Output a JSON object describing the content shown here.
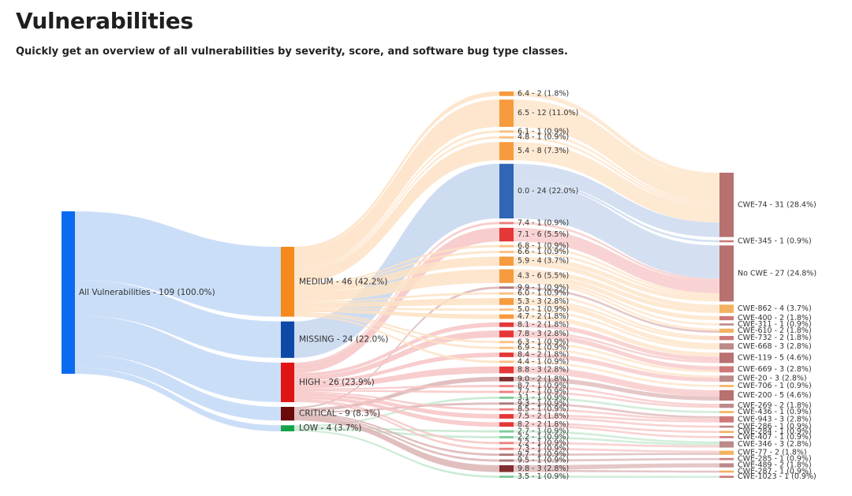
{
  "title": "Vulnerabilities",
  "subtitle": "Quickly get an overview of all vulnerabilities by severity, score, and software bug type classes.",
  "colors": {
    "root": "#0a6bf0",
    "medium": "#f58a1c",
    "missing": "#0d4aa8",
    "high": "#e01414",
    "critical": "#6b0a0a",
    "low": "#15a34a",
    "link_root": "#c8dcf8",
    "link_medium": "#fde2c4",
    "link_missing": "#c6d6ee",
    "link_high": "#f7c4c4",
    "link_critical": "#dcb4b4",
    "link_low": "#c4e8cf",
    "cwe_default": "#b06060"
  },
  "chart_data": {
    "type": "sankey",
    "title": "",
    "total": 109,
    "root": {
      "label": "All Vulnerabilities",
      "count": 109,
      "pct": "100.0%"
    },
    "severities": [
      {
        "key": "medium",
        "label": "MEDIUM",
        "count": 46,
        "pct": "42.2%"
      },
      {
        "key": "missing",
        "label": "MISSING",
        "count": 24,
        "pct": "22.0%"
      },
      {
        "key": "high",
        "label": "HIGH",
        "count": 26,
        "pct": "23.9%"
      },
      {
        "key": "critical",
        "label": "CRITICAL",
        "count": 9,
        "pct": "8.3%"
      },
      {
        "key": "low",
        "label": "LOW",
        "count": 4,
        "pct": "3.7%"
      }
    ],
    "scores": [
      {
        "label": "6.4",
        "count": 2,
        "pct": "1.8%",
        "sev": "medium"
      },
      {
        "label": "6.5",
        "count": 12,
        "pct": "11.0%",
        "sev": "medium"
      },
      {
        "label": "6.1",
        "count": 1,
        "pct": "0.9%",
        "sev": "medium"
      },
      {
        "label": "4.8",
        "count": 1,
        "pct": "0.9%",
        "sev": "medium"
      },
      {
        "label": "5.4",
        "count": 8,
        "pct": "7.3%",
        "sev": "medium"
      },
      {
        "label": "0.0",
        "count": 24,
        "pct": "22.0%",
        "sev": "missing"
      },
      {
        "label": "7.4",
        "count": 1,
        "pct": "0.9%",
        "sev": "high"
      },
      {
        "label": "7.1",
        "count": 6,
        "pct": "5.5%",
        "sev": "high"
      },
      {
        "label": "6.8",
        "count": 1,
        "pct": "0.9%",
        "sev": "medium"
      },
      {
        "label": "6.6",
        "count": 1,
        "pct": "0.9%",
        "sev": "medium"
      },
      {
        "label": "5.9",
        "count": 4,
        "pct": "3.7%",
        "sev": "medium"
      },
      {
        "label": "4.3",
        "count": 6,
        "pct": "5.5%",
        "sev": "medium"
      },
      {
        "label": "9.9",
        "count": 1,
        "pct": "0.9%",
        "sev": "critical"
      },
      {
        "label": "6.0",
        "count": 1,
        "pct": "0.9%",
        "sev": "medium"
      },
      {
        "label": "5.3",
        "count": 3,
        "pct": "2.8%",
        "sev": "medium"
      },
      {
        "label": "5.0",
        "count": 1,
        "pct": "0.9%",
        "sev": "medium"
      },
      {
        "label": "4.7",
        "count": 2,
        "pct": "1.8%",
        "sev": "medium"
      },
      {
        "label": "8.1",
        "count": 2,
        "pct": "1.8%",
        "sev": "high"
      },
      {
        "label": "7.8",
        "count": 3,
        "pct": "2.8%",
        "sev": "high"
      },
      {
        "label": "6.3",
        "count": 1,
        "pct": "0.9%",
        "sev": "medium"
      },
      {
        "label": "6.9",
        "count": 1,
        "pct": "0.9%",
        "sev": "medium"
      },
      {
        "label": "8.4",
        "count": 2,
        "pct": "1.8%",
        "sev": "high"
      },
      {
        "label": "4.4",
        "count": 1,
        "pct": "0.9%",
        "sev": "medium"
      },
      {
        "label": "8.8",
        "count": 3,
        "pct": "2.8%",
        "sev": "high"
      },
      {
        "label": "9.0",
        "count": 2,
        "pct": "1.8%",
        "sev": "critical"
      },
      {
        "label": "8.7",
        "count": 1,
        "pct": "0.9%",
        "sev": "high"
      },
      {
        "label": "7.7",
        "count": 1,
        "pct": "0.9%",
        "sev": "high"
      },
      {
        "label": "3.1",
        "count": 1,
        "pct": "0.9%",
        "sev": "low"
      },
      {
        "label": "9.3",
        "count": 1,
        "pct": "0.9%",
        "sev": "critical"
      },
      {
        "label": "8.5",
        "count": 1,
        "pct": "0.9%",
        "sev": "high"
      },
      {
        "label": "7.5",
        "count": 2,
        "pct": "1.8%",
        "sev": "high"
      },
      {
        "label": "8.2",
        "count": 2,
        "pct": "1.8%",
        "sev": "high"
      },
      {
        "label": "2.7",
        "count": 1,
        "pct": "0.9%",
        "sev": "low"
      },
      {
        "label": "2.2",
        "count": 1,
        "pct": "0.9%",
        "sev": "low"
      },
      {
        "label": "7.2",
        "count": 1,
        "pct": "0.9%",
        "sev": "high"
      },
      {
        "label": "7.3",
        "count": 1,
        "pct": "0.9%",
        "sev": "high"
      },
      {
        "label": "9.7",
        "count": 1,
        "pct": "0.9%",
        "sev": "critical"
      },
      {
        "label": "9.5",
        "count": 1,
        "pct": "0.9%",
        "sev": "critical"
      },
      {
        "label": "9.8",
        "count": 3,
        "pct": "2.8%",
        "sev": "critical"
      },
      {
        "label": "3.5",
        "count": 1,
        "pct": "0.9%",
        "sev": "low"
      }
    ],
    "cwes": [
      {
        "label": "CWE-74",
        "count": 31,
        "pct": "28.4%"
      },
      {
        "label": "CWE-345",
        "count": 1,
        "pct": "0.9%"
      },
      {
        "label": "No CWE",
        "count": 27,
        "pct": "24.8%"
      },
      {
        "label": "CWE-862",
        "count": 4,
        "pct": "3.7%"
      },
      {
        "label": "CWE-400",
        "count": 2,
        "pct": "1.8%"
      },
      {
        "label": "CWE-311",
        "count": 1,
        "pct": "0.9%"
      },
      {
        "label": "CWE-610",
        "count": 2,
        "pct": "1.8%"
      },
      {
        "label": "CWE-732",
        "count": 2,
        "pct": "1.8%"
      },
      {
        "label": "CWE-668",
        "count": 3,
        "pct": "2.8%"
      },
      {
        "label": "CWE-119",
        "count": 5,
        "pct": "4.6%"
      },
      {
        "label": "CWE-669",
        "count": 3,
        "pct": "2.8%"
      },
      {
        "label": "CWE-20",
        "count": 3,
        "pct": "2.8%"
      },
      {
        "label": "CWE-706",
        "count": 1,
        "pct": "0.9%"
      },
      {
        "label": "CWE-200",
        "count": 5,
        "pct": "4.6%"
      },
      {
        "label": "CWE-269",
        "count": 2,
        "pct": "1.8%"
      },
      {
        "label": "CWE-436",
        "count": 1,
        "pct": "0.9%"
      },
      {
        "label": "CWE-943",
        "count": 3,
        "pct": "2.8%"
      },
      {
        "label": "CWE-286",
        "count": 1,
        "pct": "0.9%"
      },
      {
        "label": "CWE-284",
        "count": 1,
        "pct": "0.9%"
      },
      {
        "label": "CWE-407",
        "count": 1,
        "pct": "0.9%"
      },
      {
        "label": "CWE-346",
        "count": 3,
        "pct": "2.8%"
      },
      {
        "label": "CWE-77",
        "count": 2,
        "pct": "1.8%"
      },
      {
        "label": "CWE-285",
        "count": 1,
        "pct": "0.9%"
      },
      {
        "label": "CWE-489",
        "count": 2,
        "pct": "1.8%"
      },
      {
        "label": "CWE-287",
        "count": 1,
        "pct": "0.9%"
      },
      {
        "label": "CWE-1023",
        "count": 1,
        "pct": "0.9%"
      }
    ]
  }
}
